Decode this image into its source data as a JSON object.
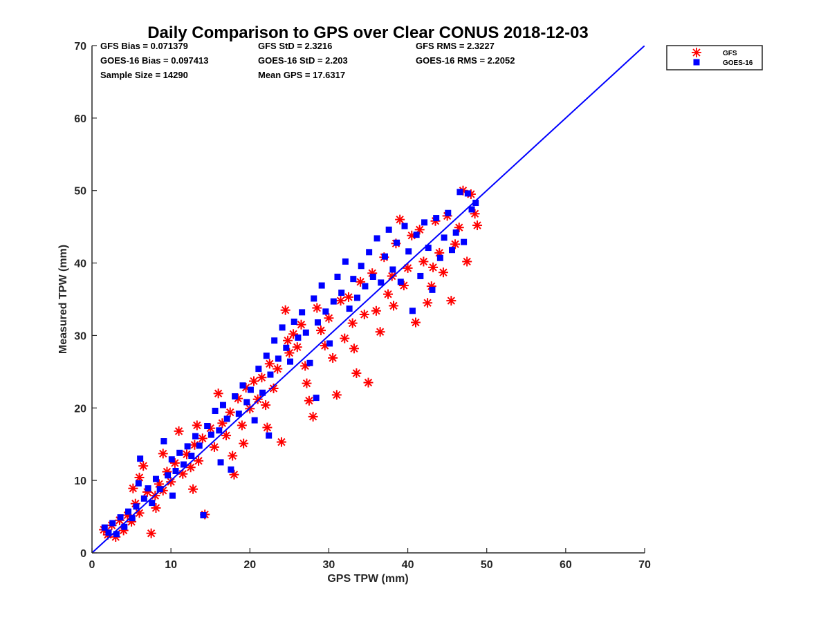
{
  "chart_data": {
    "type": "scatter",
    "title": "Daily Comparison to GPS over Clear CONUS 2018-12-03",
    "xlabel": "GPS TPW (mm)",
    "ylabel": "Measured TPW (mm)",
    "xlim": [
      0,
      70
    ],
    "ylim": [
      0,
      70
    ],
    "xticks": [
      0,
      10,
      20,
      30,
      40,
      50,
      60,
      70
    ],
    "yticks": [
      0,
      10,
      20,
      30,
      40,
      50,
      60,
      70
    ],
    "grid": false,
    "legend_position": "outside-top-right",
    "stats": [
      [
        "GFS Bias = 0.071379",
        "GFS StD = 2.3216",
        "GFS RMS = 2.3227"
      ],
      [
        "GOES-16 Bias = 0.097413",
        "GOES-16 StD = 2.203",
        "GOES-16 RMS = 2.2052"
      ],
      [
        "Sample Size = 14290",
        "Mean GPS = 17.6317",
        ""
      ]
    ],
    "reference_line": {
      "name": "1:1 line",
      "x": [
        0,
        70
      ],
      "y": [
        0,
        70
      ],
      "color": "#0000ff"
    },
    "series": [
      {
        "name": "GFS",
        "marker": "asterisk",
        "color": "#ff0000",
        "points": [
          [
            1.5,
            3.2
          ],
          [
            2,
            2.5
          ],
          [
            2.5,
            3.8
          ],
          [
            3,
            2.2
          ],
          [
            3.5,
            4.5
          ],
          [
            4,
            3.1
          ],
          [
            4.5,
            5.2
          ],
          [
            5,
            4.3
          ],
          [
            5.5,
            6.8
          ],
          [
            6,
            5.5
          ],
          [
            6.5,
            12
          ],
          [
            7,
            8.4
          ],
          [
            7.5,
            2.7
          ],
          [
            8,
            7.9
          ],
          [
            8.5,
            9.5
          ],
          [
            9,
            8.6
          ],
          [
            9.5,
            11.2
          ],
          [
            10,
            9.8
          ],
          [
            10.5,
            12.4
          ],
          [
            11,
            16.8
          ],
          [
            11.5,
            10.9
          ],
          [
            12,
            13.6
          ],
          [
            12.5,
            11.8
          ],
          [
            13,
            14.9
          ],
          [
            13.5,
            12.7
          ],
          [
            14,
            15.8
          ],
          [
            14.3,
            5.3
          ],
          [
            15,
            17.2
          ],
          [
            15.5,
            14.6
          ],
          [
            16,
            22
          ],
          [
            16.5,
            17.9
          ],
          [
            17,
            16.2
          ],
          [
            17.5,
            19.4
          ],
          [
            18,
            10.8
          ],
          [
            18.5,
            21.3
          ],
          [
            19,
            17.6
          ],
          [
            19.5,
            22.8
          ],
          [
            20,
            19.9
          ],
          [
            20.5,
            23.7
          ],
          [
            21,
            21.2
          ],
          [
            21.5,
            24.2
          ],
          [
            22,
            20.4
          ],
          [
            22.5,
            26.1
          ],
          [
            23,
            22.7
          ],
          [
            23.5,
            25.4
          ],
          [
            24,
            15.3
          ],
          [
            24.5,
            33.5
          ],
          [
            25,
            27.6
          ],
          [
            25.5,
            30.2
          ],
          [
            26,
            28.4
          ],
          [
            26.5,
            31.5
          ],
          [
            27,
            25.8
          ],
          [
            27.5,
            21
          ],
          [
            28,
            18.8
          ],
          [
            28.5,
            33.8
          ],
          [
            29,
            30.7
          ],
          [
            29.5,
            28.6
          ],
          [
            30,
            32.4
          ],
          [
            30.5,
            26.9
          ],
          [
            31,
            21.8
          ],
          [
            31.5,
            34.8
          ],
          [
            32,
            29.6
          ],
          [
            32.5,
            35.3
          ],
          [
            33,
            31.7
          ],
          [
            33.5,
            24.8
          ],
          [
            34,
            37.4
          ],
          [
            34.5,
            32.9
          ],
          [
            35,
            23.5
          ],
          [
            35.5,
            38.6
          ],
          [
            36,
            33.4
          ],
          [
            36.5,
            30.5
          ],
          [
            37,
            40.8
          ],
          [
            37.5,
            35.7
          ],
          [
            38,
            38.2
          ],
          [
            38.5,
            42.7
          ],
          [
            39,
            46
          ],
          [
            39.5,
            36.9
          ],
          [
            40,
            39.3
          ],
          [
            40.5,
            43.8
          ],
          [
            41,
            31.8
          ],
          [
            41.5,
            44.6
          ],
          [
            42,
            40.2
          ],
          [
            42.5,
            34.5
          ],
          [
            43,
            36.8
          ],
          [
            43.5,
            45.8
          ],
          [
            44,
            41.4
          ],
          [
            44.5,
            38.7
          ],
          [
            45,
            46.5
          ],
          [
            45.5,
            34.8
          ],
          [
            46,
            42.6
          ],
          [
            46.5,
            44.9
          ],
          [
            47,
            50
          ],
          [
            47.5,
            40.2
          ],
          [
            48,
            49.5
          ],
          [
            48.5,
            46.8
          ],
          [
            48.8,
            45.2
          ],
          [
            6,
            10.4
          ],
          [
            9,
            13.7
          ],
          [
            12.8,
            8.8
          ],
          [
            17.8,
            13.4
          ],
          [
            22.2,
            17.3
          ],
          [
            27.2,
            23.4
          ],
          [
            33.2,
            28.2
          ],
          [
            38.2,
            34.1
          ],
          [
            43.2,
            39.4
          ],
          [
            5.2,
            8.9
          ],
          [
            8.1,
            6.2
          ],
          [
            13.3,
            17.6
          ],
          [
            19.2,
            15.1
          ],
          [
            24.8,
            29.3
          ]
        ]
      },
      {
        "name": "GOES-16",
        "marker": "square",
        "color": "#0000ff",
        "points": [
          [
            1.6,
            3.5
          ],
          [
            2.1,
            2.8
          ],
          [
            2.6,
            4.1
          ],
          [
            3.1,
            2.6
          ],
          [
            3.6,
            4.9
          ],
          [
            4.1,
            3.6
          ],
          [
            4.6,
            5.7
          ],
          [
            5.1,
            4.8
          ],
          [
            5.6,
            6.4
          ],
          [
            6.1,
            13
          ],
          [
            6.6,
            7.5
          ],
          [
            7.1,
            8.9
          ],
          [
            7.6,
            6.9
          ],
          [
            8.1,
            10.2
          ],
          [
            8.6,
            8.8
          ],
          [
            9.1,
            15.4
          ],
          [
            9.6,
            10.7
          ],
          [
            10.1,
            12.9
          ],
          [
            10.6,
            11.3
          ],
          [
            11.1,
            13.8
          ],
          [
            11.6,
            12.2
          ],
          [
            12.1,
            14.7
          ],
          [
            12.6,
            13.4
          ],
          [
            13.1,
            16.1
          ],
          [
            13.6,
            14.8
          ],
          [
            14.1,
            5.2
          ],
          [
            14.6,
            17.5
          ],
          [
            15.1,
            16.3
          ],
          [
            15.6,
            19.6
          ],
          [
            16.1,
            16.9
          ],
          [
            16.6,
            20.4
          ],
          [
            17.1,
            18.5
          ],
          [
            17.6,
            11.5
          ],
          [
            18.1,
            21.6
          ],
          [
            18.6,
            19.2
          ],
          [
            19.1,
            23.1
          ],
          [
            19.6,
            20.8
          ],
          [
            20.1,
            22.5
          ],
          [
            20.6,
            18.3
          ],
          [
            21.1,
            25.4
          ],
          [
            21.6,
            22.1
          ],
          [
            22.1,
            27.2
          ],
          [
            22.6,
            24.6
          ],
          [
            23.1,
            29.3
          ],
          [
            23.6,
            26.8
          ],
          [
            24.1,
            31.1
          ],
          [
            24.6,
            28.3
          ],
          [
            25.1,
            26.4
          ],
          [
            25.6,
            31.9
          ],
          [
            26.1,
            29.7
          ],
          [
            26.6,
            33.2
          ],
          [
            27.1,
            30.4
          ],
          [
            27.6,
            26.2
          ],
          [
            28.1,
            35.1
          ],
          [
            28.6,
            31.8
          ],
          [
            29.1,
            36.9
          ],
          [
            29.6,
            33.3
          ],
          [
            30.1,
            28.9
          ],
          [
            30.6,
            34.7
          ],
          [
            31.1,
            38.1
          ],
          [
            31.6,
            35.9
          ],
          [
            32.1,
            40.2
          ],
          [
            32.6,
            33.7
          ],
          [
            33.1,
            37.8
          ],
          [
            33.6,
            35.2
          ],
          [
            34.1,
            39.6
          ],
          [
            34.6,
            36.8
          ],
          [
            35.1,
            41.5
          ],
          [
            35.6,
            38.1
          ],
          [
            36.1,
            43.4
          ],
          [
            36.6,
            37.3
          ],
          [
            37.1,
            40.9
          ],
          [
            37.6,
            44.6
          ],
          [
            38.1,
            39.1
          ],
          [
            38.6,
            42.8
          ],
          [
            39.1,
            37.4
          ],
          [
            39.6,
            45.1
          ],
          [
            40.1,
            41.6
          ],
          [
            40.6,
            33.4
          ],
          [
            41.1,
            43.9
          ],
          [
            41.6,
            38.2
          ],
          [
            42.1,
            45.6
          ],
          [
            42.6,
            42.1
          ],
          [
            43.1,
            36.3
          ],
          [
            43.6,
            46.2
          ],
          [
            44.1,
            40.7
          ],
          [
            44.6,
            43.5
          ],
          [
            45.1,
            46.9
          ],
          [
            45.6,
            41.8
          ],
          [
            46.1,
            44.2
          ],
          [
            46.6,
            49.8
          ],
          [
            47.1,
            42.9
          ],
          [
            47.6,
            49.6
          ],
          [
            48.1,
            47.4
          ],
          [
            48.6,
            48.3
          ],
          [
            5.9,
            9.6
          ],
          [
            10.2,
            7.9
          ],
          [
            16.3,
            12.5
          ],
          [
            22.4,
            16.2
          ],
          [
            28.4,
            21.4
          ]
        ]
      }
    ]
  }
}
